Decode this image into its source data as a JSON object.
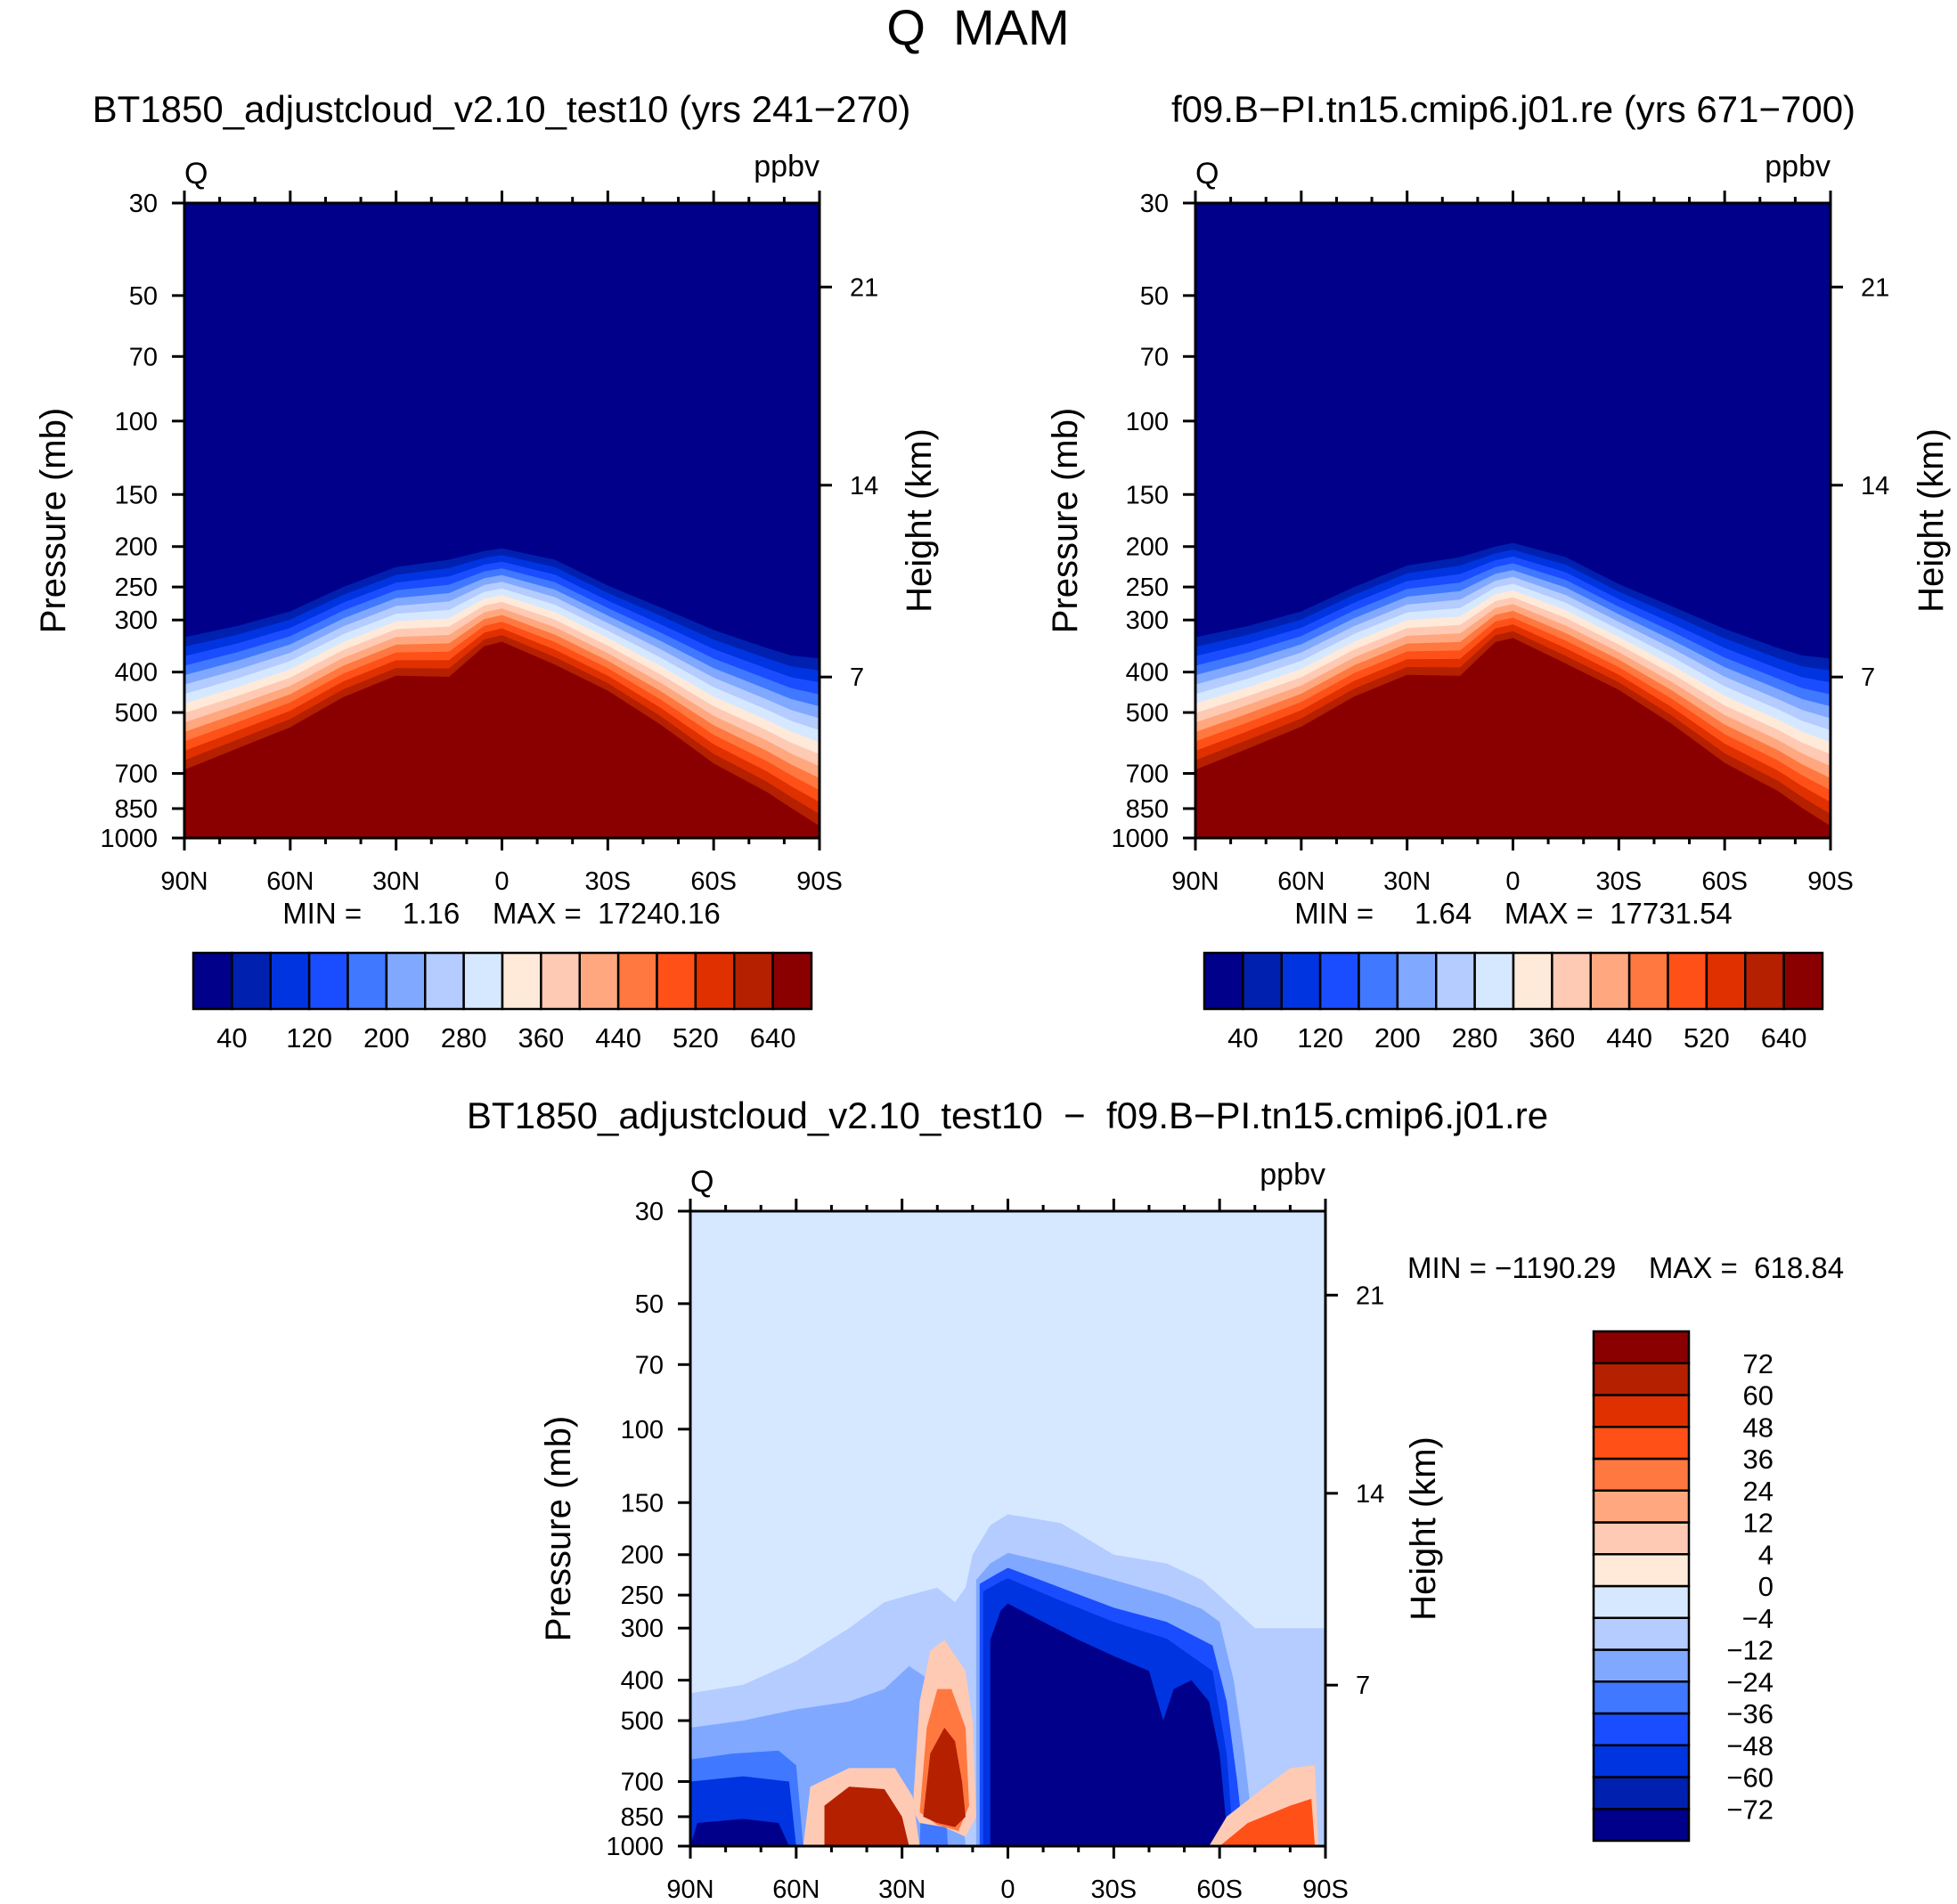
{
  "title": "Q  MAM",
  "diff_title": "BT1850_adjustcloud_v2.10_test10  −  f09.B−PI.tn15.cmip6.j01.re",
  "chart_data": [
    {
      "type": "contour",
      "title": "BT1850_adjustcloud_v2.10_test10 (yrs 241−270)",
      "left_label": "Q",
      "right_label": "ppbv",
      "ylabel": "Pressure (mb)",
      "y2label": "Height (km)",
      "minmax": "MIN =     1.16    MAX =  17240.16",
      "xlim": [
        90,
        -90
      ],
      "ylim": [
        30,
        1000
      ],
      "yscale": "log",
      "x_ticks": [
        90,
        60,
        30,
        0,
        -30,
        -60,
        -90
      ],
      "x_tick_labels": [
        "90N",
        "60N",
        "30N",
        "0",
        "30S",
        "60S",
        "90S"
      ],
      "y_ticks": [
        30,
        50,
        70,
        100,
        150,
        200,
        250,
        300,
        400,
        500,
        700,
        850,
        1000
      ],
      "y_tick_labels": [
        "30",
        "50",
        "70",
        "100",
        "150",
        "200",
        "250",
        "300",
        "400",
        "500",
        "700",
        "850",
        "1000"
      ],
      "height_ticks_km": [
        21,
        14,
        7
      ],
      "height_ticks_pressure_mb": [
        47.7,
        142.5,
        411
      ],
      "height_tick_labels": [
        "21",
        "14",
        "7"
      ],
      "levels": [
        40,
        80,
        120,
        160,
        200,
        240,
        280,
        320,
        360,
        400,
        440,
        480,
        520,
        560,
        600,
        640
      ],
      "colorbar_labels": [
        "40",
        "120",
        "200",
        "280",
        "360",
        "440",
        "520",
        "640"
      ],
      "field_lat": [
        90,
        75,
        60,
        45,
        30,
        15,
        5,
        0,
        -15,
        -30,
        -45,
        -60,
        -75,
        -82,
        -90
      ],
      "field_top_mb": [
        330,
        310,
        286,
        250,
        224,
        215,
        205,
        202,
        215,
        248,
        280,
        317,
        350,
        365,
        371
      ],
      "field_bottom_mb": [
        723,
        640,
        568,
        480,
        426,
        430,
        360,
        351,
        400,
        462,
        560,
        698,
        820,
        900,
        1000
      ]
    },
    {
      "type": "contour",
      "title": "f09.B−PI.tn15.cmip6.j01.re (yrs 671−700)",
      "left_label": "Q",
      "right_label": "ppbv",
      "ylabel": "Pressure (mb)",
      "y2label": "Height (km)",
      "minmax": "MIN =     1.64    MAX =  17731.54",
      "xlim": [
        90,
        -90
      ],
      "ylim": [
        30,
        1000
      ],
      "yscale": "log",
      "x_ticks": [
        90,
        60,
        30,
        0,
        -30,
        -60,
        -90
      ],
      "x_tick_labels": [
        "90N",
        "60N",
        "30N",
        "0",
        "30S",
        "60S",
        "90S"
      ],
      "y_ticks": [
        30,
        50,
        70,
        100,
        150,
        200,
        250,
        300,
        400,
        500,
        700,
        850,
        1000
      ],
      "y_tick_labels": [
        "30",
        "50",
        "70",
        "100",
        "150",
        "200",
        "250",
        "300",
        "400",
        "500",
        "700",
        "850",
        "1000"
      ],
      "height_ticks_km": [
        21,
        14,
        7
      ],
      "height_ticks_pressure_mb": [
        47.7,
        142.5,
        411
      ],
      "height_tick_labels": [
        "21",
        "14",
        "7"
      ],
      "levels": [
        40,
        80,
        120,
        160,
        200,
        240,
        280,
        320,
        360,
        400,
        440,
        480,
        520,
        560,
        600,
        640
      ],
      "colorbar_labels": [
        "40",
        "120",
        "200",
        "280",
        "360",
        "440",
        "520",
        "640"
      ],
      "field_lat": [
        90,
        75,
        60,
        45,
        30,
        15,
        5,
        0,
        -15,
        -30,
        -45,
        -60,
        -75,
        -82,
        -90
      ],
      "field_top_mb": [
        330,
        310,
        286,
        250,
        222,
        212,
        200,
        196,
        212,
        246,
        278,
        315,
        350,
        365,
        371
      ],
      "field_bottom_mb": [
        723,
        640,
        566,
        478,
        424,
        428,
        352,
        344,
        398,
        460,
        558,
        696,
        815,
        900,
        1000
      ]
    },
    {
      "type": "contour",
      "title": "",
      "left_label": "Q",
      "right_label": "ppbv",
      "ylabel": "Pressure (mb)",
      "y2label": "Height (km)",
      "minmax": "MIN = −1190.29    MAX =  618.84",
      "xlim": [
        90,
        -90
      ],
      "ylim": [
        30,
        1000
      ],
      "yscale": "log",
      "x_ticks": [
        90,
        60,
        30,
        0,
        -30,
        -60,
        -90
      ],
      "x_tick_labels": [
        "90N",
        "60N",
        "30N",
        "0",
        "30S",
        "60S",
        "90S"
      ],
      "y_ticks": [
        30,
        50,
        70,
        100,
        150,
        200,
        250,
        300,
        400,
        500,
        700,
        850,
        1000
      ],
      "y_tick_labels": [
        "30",
        "50",
        "70",
        "100",
        "150",
        "200",
        "250",
        "300",
        "400",
        "500",
        "700",
        "850",
        "1000"
      ],
      "height_ticks_km": [
        21,
        14,
        7
      ],
      "height_ticks_pressure_mb": [
        47.7,
        142.5,
        411
      ],
      "height_tick_labels": [
        "21",
        "14",
        "7"
      ],
      "levels": [
        -72,
        -60,
        -48,
        -36,
        -24,
        -12,
        -4,
        0,
        4,
        12,
        24,
        36,
        48,
        60,
        72
      ],
      "colorbar_labels": [
        "72",
        "60",
        "48",
        "36",
        "24",
        "12",
        "4",
        "0",
        "−4",
        "−12",
        "−24",
        "−36",
        "−48",
        "−60",
        "−72"
      ],
      "background_bin": 7,
      "regions": [
        {
          "bin": 6,
          "pts": [
            [
              90,
              1000
            ],
            [
              90,
              430
            ],
            [
              75,
              410
            ],
            [
              60,
              360
            ],
            [
              45,
              300
            ],
            [
              35,
              260
            ],
            [
              28,
              250
            ],
            [
              20,
              240
            ],
            [
              15,
              260
            ],
            [
              12,
              240
            ],
            [
              10,
              200
            ],
            [
              5,
              170
            ],
            [
              0,
              160
            ],
            [
              -15,
              168
            ],
            [
              -30,
              200
            ],
            [
              -45,
              210
            ],
            [
              -55,
              230
            ],
            [
              -62,
              260
            ],
            [
              -70,
              300
            ],
            [
              -90,
              300
            ],
            [
              -90,
              1000
            ]
          ]
        },
        {
          "bin": 5,
          "pts": [
            [
              90,
              1000
            ],
            [
              90,
              520
            ],
            [
              75,
              500
            ],
            [
              60,
              470
            ],
            [
              45,
              450
            ],
            [
              35,
              420
            ],
            [
              28,
              370
            ],
            [
              22,
              400
            ],
            [
              18,
              470
            ],
            [
              14,
              600
            ],
            [
              12,
              1000
            ]
          ]
        },
        {
          "bin": 5,
          "pts": [
            [
              9,
              1000
            ],
            [
              9,
              230
            ],
            [
              5,
              210
            ],
            [
              0,
              198
            ],
            [
              -15,
              212
            ],
            [
              -30,
              230
            ],
            [
              -45,
              250
            ],
            [
              -55,
              270
            ],
            [
              -60,
              290
            ],
            [
              -64,
              400
            ],
            [
              -67,
              600
            ],
            [
              -70,
              1000
            ]
          ]
        },
        {
          "bin": 4,
          "pts": [
            [
              90,
              1000
            ],
            [
              90,
              620
            ],
            [
              78,
              600
            ],
            [
              65,
              590
            ],
            [
              60,
              640
            ],
            [
              58,
              1000
            ]
          ]
        },
        {
          "bin": 4,
          "pts": [
            [
              25,
              1000
            ],
            [
              24,
              520
            ],
            [
              21,
              420
            ],
            [
              19,
              500
            ],
            [
              18,
              700
            ],
            [
              17,
              1000
            ]
          ]
        },
        {
          "bin": 3,
          "pts": [
            [
              8,
              1000
            ],
            [
              8,
              235
            ],
            [
              3,
              222
            ],
            [
              0,
              215
            ],
            [
              -15,
              240
            ],
            [
              -30,
              268
            ],
            [
              -45,
              290
            ],
            [
              -58,
              330
            ],
            [
              -62,
              450
            ],
            [
              -65,
              700
            ],
            [
              -67,
              1000
            ]
          ]
        },
        {
          "bin": 2,
          "pts": [
            [
              90,
              1000
            ],
            [
              90,
              700
            ],
            [
              75,
              680
            ],
            [
              62,
              700
            ],
            [
              60,
              1000
            ]
          ]
        },
        {
          "bin": 2,
          "pts": [
            [
              7,
              1000
            ],
            [
              7,
              245
            ],
            [
              2,
              232
            ],
            [
              0,
              228
            ],
            [
              -15,
              258
            ],
            [
              -30,
              290
            ],
            [
              -45,
              318
            ],
            [
              -58,
              380
            ],
            [
              -62,
              600
            ],
            [
              -64,
              1000
            ]
          ]
        },
        {
          "bin": 0,
          "pts": [
            [
              90,
              1000
            ],
            [
              88,
              880
            ],
            [
              75,
              860
            ],
            [
              65,
              880
            ],
            [
              62,
              1000
            ]
          ]
        },
        {
          "bin": 0,
          "pts": [
            [
              5,
              1000
            ],
            [
              5,
              320
            ],
            [
              2,
              272
            ],
            [
              0,
              262
            ],
            [
              -10,
              290
            ],
            [
              -20,
              320
            ],
            [
              -30,
              350
            ],
            [
              -40,
              380
            ],
            [
              -44,
              500
            ],
            [
              -47,
              420
            ],
            [
              -52,
              400
            ],
            [
              -57,
              450
            ],
            [
              -60,
              600
            ],
            [
              -62,
              900
            ],
            [
              -64,
              1000
            ]
          ]
        },
        {
          "bin": 9,
          "pts": [
            [
              27,
              820
            ],
            [
              25,
              450
            ],
            [
              22,
              340
            ],
            [
              18,
              320
            ],
            [
              12,
              380
            ],
            [
              10,
              500
            ],
            [
              9,
              850
            ],
            [
              12,
              950
            ],
            [
              18,
              900
            ],
            [
              25,
              880
            ]
          ]
        },
        {
          "bin": 11,
          "pts": [
            [
              25,
              830
            ],
            [
              23,
              520
            ],
            [
              20,
              420
            ],
            [
              16,
              420
            ],
            [
              12,
              520
            ],
            [
              11,
              800
            ],
            [
              14,
              920
            ],
            [
              20,
              890
            ]
          ]
        },
        {
          "bin": 14,
          "pts": [
            [
              24,
              850
            ],
            [
              22,
              600
            ],
            [
              18,
              520
            ],
            [
              15,
              560
            ],
            [
              13,
              700
            ],
            [
              12,
              850
            ],
            [
              15,
              900
            ],
            [
              20,
              880
            ]
          ]
        },
        {
          "bin": 9,
          "pts": [
            [
              58,
              1000
            ],
            [
              56,
              720
            ],
            [
              45,
              650
            ],
            [
              32,
              650
            ],
            [
              27,
              760
            ],
            [
              25,
              1000
            ]
          ]
        },
        {
          "bin": 14,
          "pts": [
            [
              52,
              1000
            ],
            [
              52,
              800
            ],
            [
              45,
              720
            ],
            [
              35,
              730
            ],
            [
              30,
              850
            ],
            [
              28,
              1000
            ]
          ]
        },
        {
          "bin": 9,
          "pts": [
            [
              -57,
              1000
            ],
            [
              -62,
              850
            ],
            [
              -72,
              730
            ],
            [
              -80,
              650
            ],
            [
              -87,
              640
            ],
            [
              -88,
              1000
            ]
          ]
        },
        {
          "bin": 12,
          "pts": [
            [
              -60,
              1000
            ],
            [
              -68,
              880
            ],
            [
              -80,
              800
            ],
            [
              -86,
              770
            ],
            [
              -87,
              1000
            ]
          ]
        }
      ]
    }
  ],
  "colors": [
    "#00008a",
    "#0020b0",
    "#0034e0",
    "#1a4dff",
    "#4078ff",
    "#80a8ff",
    "#b4ccff",
    "#d6e8ff",
    "#ffeada",
    "#ffcab4",
    "#ffa880",
    "#ff7840",
    "#ff5018",
    "#e03000",
    "#b42000",
    "#8a0000"
  ],
  "diff_colors": [
    "#00008a",
    "#0020b0",
    "#0034e0",
    "#1a4dff",
    "#4078ff",
    "#80a8ff",
    "#b4ccff",
    "#d6e8ff",
    "#ffeada",
    "#ffcab4",
    "#ffa880",
    "#ff7840",
    "#ff5018",
    "#e03000",
    "#b42000",
    "#8a0000"
  ]
}
